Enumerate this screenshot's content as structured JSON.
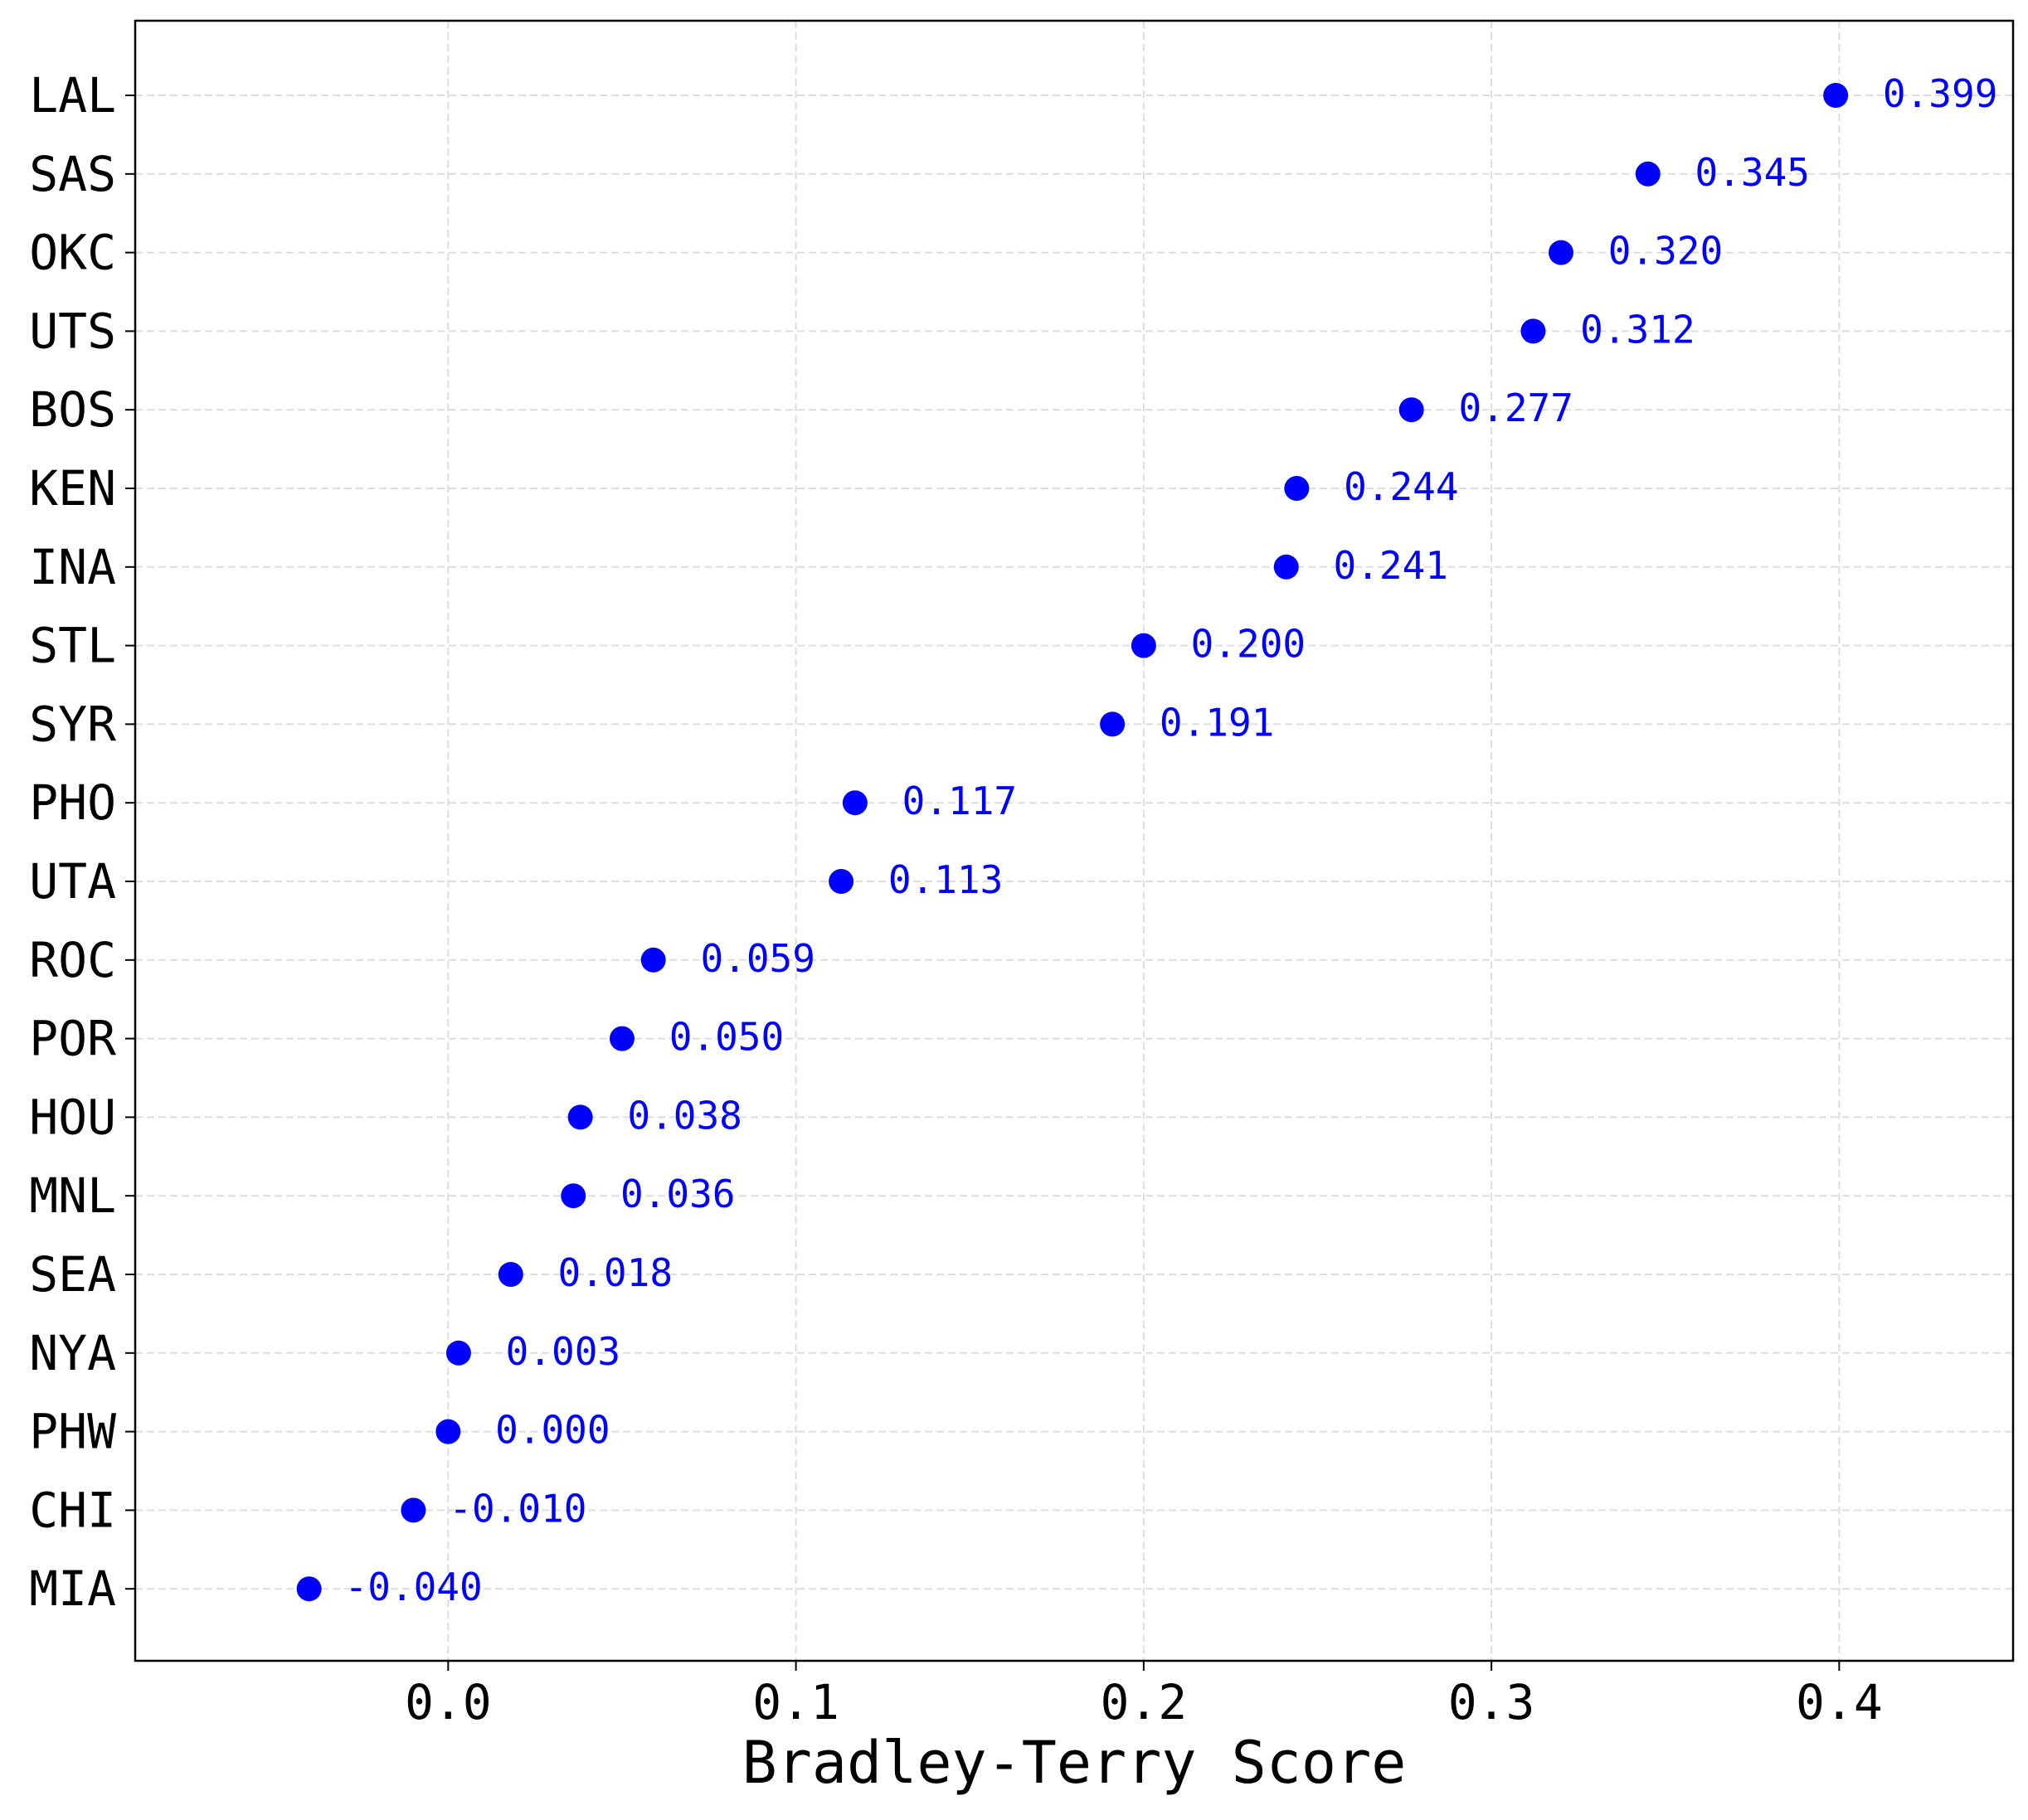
{
  "chart_data": {
    "type": "scatter",
    "orientation": "horizontal",
    "title": "",
    "xlabel": "Bradley-Terry Score",
    "ylabel": "",
    "xlim": [
      -0.09,
      0.45
    ],
    "xticks": [
      0.0,
      0.1,
      0.2,
      0.3,
      0.4
    ],
    "xtick_labels": [
      "0.0",
      "0.1",
      "0.2",
      "0.3",
      "0.4"
    ],
    "grid": true,
    "legend": "none",
    "point_color": "#0000ff",
    "label_color": "#0000ff",
    "grid_color": "#dddddd",
    "categories": [
      "LAL",
      "SAS",
      "OKC",
      "UTS",
      "BOS",
      "KEN",
      "INA",
      "STL",
      "SYR",
      "PHO",
      "UTA",
      "ROC",
      "POR",
      "HOU",
      "MNL",
      "SEA",
      "NYA",
      "PHW",
      "CHI",
      "MIA"
    ],
    "values": [
      0.399,
      0.345,
      0.32,
      0.312,
      0.277,
      0.244,
      0.241,
      0.2,
      0.191,
      0.117,
      0.113,
      0.059,
      0.05,
      0.038,
      0.036,
      0.018,
      0.003,
      0.0,
      -0.01,
      -0.04
    ],
    "value_labels": [
      "0.399",
      "0.345",
      "0.320",
      "0.312",
      "0.277",
      "0.244",
      "0.241",
      "0.200",
      "0.191",
      "0.117",
      "0.113",
      "0.059",
      "0.050",
      "0.038",
      "0.036",
      "0.018",
      "0.003",
      "0.000",
      "-0.010",
      "-0.040"
    ]
  }
}
